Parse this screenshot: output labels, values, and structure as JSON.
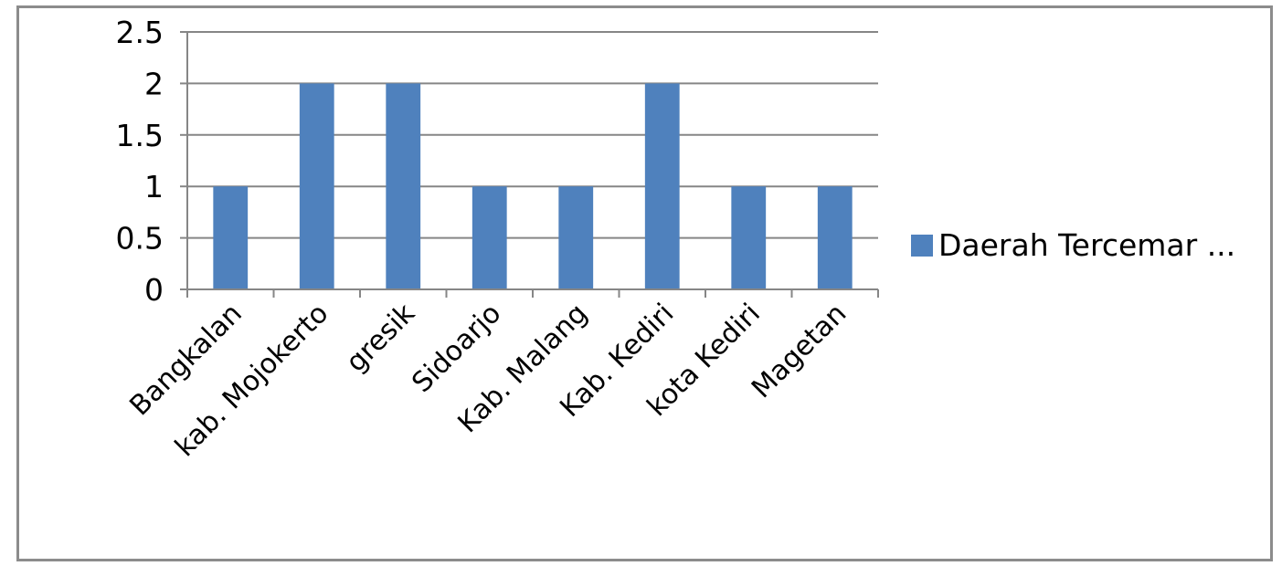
{
  "chart_data": {
    "type": "bar",
    "categories": [
      "Bangkalan",
      "kab. Mojokerto",
      "gresik",
      "Sidoarjo",
      "Kab. Malang",
      "Kab. Kediri",
      "kota Kediri",
      "Magetan"
    ],
    "series": [
      {
        "name": "Daerah Tercemar ...",
        "values": [
          1,
          2,
          2,
          1,
          1,
          2,
          1,
          1
        ],
        "color": "#4f81bd"
      }
    ],
    "yticks": [
      "0",
      "0.5",
      "1",
      "1.5",
      "2",
      "2.5"
    ],
    "ylim": [
      0,
      2.5
    ],
    "grid": true,
    "legend_position": "right",
    "colors": {
      "gridline": "#868686",
      "axis": "#868686",
      "frame": "#8c8c8c"
    }
  }
}
